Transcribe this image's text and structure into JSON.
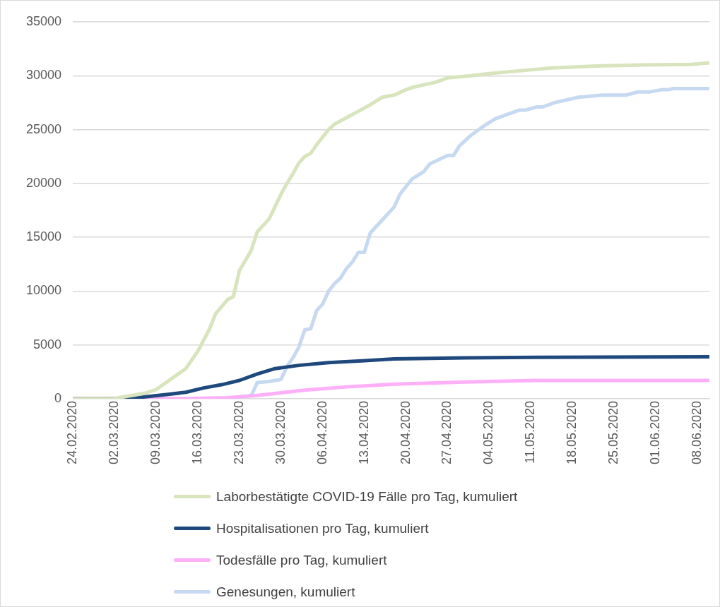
{
  "chart_data": {
    "type": "line",
    "ylim": [
      0,
      35000
    ],
    "yticks": [
      0,
      5000,
      10000,
      15000,
      20000,
      25000,
      30000,
      35000
    ],
    "xlim": [
      "2020-02-24",
      "2020-06-10"
    ],
    "xticks": [
      {
        "value": "2020-02-24",
        "label": "24.02.2020"
      },
      {
        "value": "2020-03-02",
        "label": "02.03.2020"
      },
      {
        "value": "2020-03-09",
        "label": "09.03.2020"
      },
      {
        "value": "2020-03-16",
        "label": "16.03.2020"
      },
      {
        "value": "2020-03-23",
        "label": "23.03.2020"
      },
      {
        "value": "2020-03-30",
        "label": "30.03.2020"
      },
      {
        "value": "2020-04-06",
        "label": "06.04.2020"
      },
      {
        "value": "2020-04-13",
        "label": "13.04.2020"
      },
      {
        "value": "2020-04-20",
        "label": "20.04.2020"
      },
      {
        "value": "2020-04-27",
        "label": "27.04.2020"
      },
      {
        "value": "2020-05-04",
        "label": "04.05.2020"
      },
      {
        "value": "2020-05-11",
        "label": "11.05.2020"
      },
      {
        "value": "2020-05-18",
        "label": "18.05.2020"
      },
      {
        "value": "2020-05-25",
        "label": "25.05.2020"
      },
      {
        "value": "2020-06-01",
        "label": "01.06.2020"
      },
      {
        "value": "2020-06-08",
        "label": "08.06.2020"
      }
    ],
    "grid": "y",
    "legend": "bottom",
    "marker": "none",
    "line_style": "solid",
    "series": [
      {
        "name": "Laborbestätigte COVID-19 Fälle pro Tag, kumuliert",
        "color": "#d7e4bd",
        "x": [
          "2020-02-24",
          "2020-03-02",
          "2020-03-05",
          "2020-03-07",
          "2020-03-09",
          "2020-03-14",
          "2020-03-16",
          "2020-03-18",
          "2020-03-19",
          "2020-03-21",
          "2020-03-22",
          "2020-03-23",
          "2020-03-25",
          "2020-03-26",
          "2020-03-28",
          "2020-03-30",
          "2020-03-31",
          "2020-04-01",
          "2020-04-02",
          "2020-04-03",
          "2020-04-04",
          "2020-04-05",
          "2020-04-07",
          "2020-04-08",
          "2020-04-10",
          "2020-04-12",
          "2020-04-14",
          "2020-04-16",
          "2020-04-18",
          "2020-04-20",
          "2020-04-21",
          "2020-04-25",
          "2020-04-27",
          "2020-05-01",
          "2020-05-04",
          "2020-05-12",
          "2020-05-14",
          "2020-05-22",
          "2020-05-30",
          "2020-06-07",
          "2020-06-10"
        ],
        "values": [
          0,
          30,
          300,
          500,
          850,
          2800,
          4400,
          6500,
          7900,
          9200,
          9500,
          11900,
          13800,
          15500,
          16700,
          19000,
          20000,
          20900,
          21900,
          22500,
          22800,
          23600,
          25000,
          25500,
          26100,
          26700,
          27300,
          28000,
          28200,
          28700,
          28900,
          29400,
          29800,
          30000,
          30200,
          30600,
          30700,
          30900,
          31000,
          31050,
          31200
        ]
      },
      {
        "name": "Hospitalisationen pro Tag, kumuliert",
        "color": "#1f497d",
        "x": [
          "2020-02-24",
          "2020-03-05",
          "2020-03-11",
          "2020-03-14",
          "2020-03-17",
          "2020-03-20",
          "2020-03-23",
          "2020-03-26",
          "2020-03-29",
          "2020-04-02",
          "2020-04-07",
          "2020-04-12",
          "2020-04-18",
          "2020-04-30",
          "2020-05-12",
          "2020-06-10"
        ],
        "values": [
          0,
          50,
          400,
          600,
          1000,
          1300,
          1700,
          2300,
          2800,
          3100,
          3350,
          3500,
          3700,
          3800,
          3850,
          3900
        ]
      },
      {
        "name": "Todesfälle pro Tag, kumuliert",
        "color": "#fdb0f8",
        "x": [
          "2020-02-24",
          "2020-03-15",
          "2020-03-21",
          "2020-03-26",
          "2020-04-03",
          "2020-04-10",
          "2020-04-18",
          "2020-04-30",
          "2020-05-12",
          "2020-06-10"
        ],
        "values": [
          0,
          20,
          100,
          300,
          800,
          1100,
          1350,
          1550,
          1700,
          1700
        ]
      },
      {
        "name": "Genesungen, kumuliert",
        "color": "#c6d9f1",
        "x": [
          "2020-02-24",
          "2020-03-19",
          "2020-03-22",
          "2020-03-25",
          "2020-03-26",
          "2020-03-28",
          "2020-03-30",
          "2020-03-31",
          "2020-04-01",
          "2020-04-02",
          "2020-04-03",
          "2020-04-04",
          "2020-04-05",
          "2020-04-06",
          "2020-04-07",
          "2020-04-08",
          "2020-04-09",
          "2020-04-10",
          "2020-04-11",
          "2020-04-12",
          "2020-04-13",
          "2020-04-14",
          "2020-04-16",
          "2020-04-18",
          "2020-04-19",
          "2020-04-21",
          "2020-04-23",
          "2020-04-24",
          "2020-04-27",
          "2020-04-28",
          "2020-04-29",
          "2020-04-30",
          "2020-05-01",
          "2020-05-03",
          "2020-05-05",
          "2020-05-07",
          "2020-05-09",
          "2020-05-10",
          "2020-05-12",
          "2020-05-13",
          "2020-05-15",
          "2020-05-19",
          "2020-05-23",
          "2020-05-27",
          "2020-05-29",
          "2020-05-31",
          "2020-06-02",
          "2020-06-03",
          "2020-06-04",
          "2020-06-10"
        ],
        "values": [
          0,
          0,
          100,
          300,
          1500,
          1600,
          1800,
          3000,
          3800,
          4800,
          6400,
          6500,
          8200,
          8800,
          10000,
          10700,
          11200,
          12100,
          12700,
          13600,
          13600,
          15400,
          16600,
          17800,
          19000,
          20400,
          21100,
          21800,
          22600,
          22600,
          23500,
          24000,
          24500,
          25300,
          26000,
          26400,
          26800,
          26800,
          27100,
          27100,
          27500,
          28000,
          28200,
          28200,
          28500,
          28500,
          28700,
          28700,
          28800,
          28800
        ]
      }
    ]
  }
}
